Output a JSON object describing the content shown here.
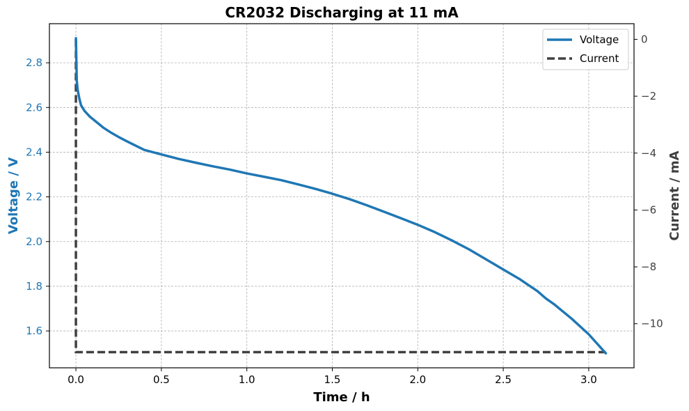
{
  "chart_data": {
    "type": "line",
    "title": "CR2032 Discharging at 11 mA",
    "xlabel": "Time  /  h",
    "ylabel_left": "Voltage  /  V",
    "ylabel_right": "Current  /  mA",
    "xlim": [
      -0.155,
      3.265
    ],
    "ylim_left": [
      1.435,
      2.975
    ],
    "ylim_right": [
      -11.55,
      0.55
    ],
    "x_ticks": [
      0.0,
      0.5,
      1.0,
      1.5,
      2.0,
      2.5,
      3.0
    ],
    "y_left_ticks": [
      1.6,
      1.8,
      2.0,
      2.2,
      2.4,
      2.6,
      2.8
    ],
    "y_right_ticks": [
      0,
      -2,
      -4,
      -6,
      -8,
      -10
    ],
    "grid": true,
    "legend_position": "top-right",
    "colors": {
      "voltage": "#1f77b4",
      "current": "#404040",
      "left_axis": "#1f77b4",
      "right_axis": "#404040"
    },
    "series": [
      {
        "name": "Voltage",
        "axis": "left",
        "style": "solid",
        "x": [
          0.0,
          0.005,
          0.01,
          0.02,
          0.03,
          0.05,
          0.08,
          0.12,
          0.16,
          0.2,
          0.25,
          0.3,
          0.4,
          0.5,
          0.6,
          0.7,
          0.8,
          0.9,
          1.0,
          1.1,
          1.2,
          1.3,
          1.4,
          1.5,
          1.6,
          1.7,
          1.8,
          1.9,
          2.0,
          2.1,
          2.2,
          2.3,
          2.4,
          2.5,
          2.6,
          2.7,
          2.75,
          2.8,
          2.9,
          3.0,
          3.1
        ],
        "y": [
          2.91,
          2.72,
          2.68,
          2.64,
          2.61,
          2.585,
          2.56,
          2.535,
          2.51,
          2.49,
          2.468,
          2.448,
          2.41,
          2.39,
          2.37,
          2.353,
          2.337,
          2.322,
          2.305,
          2.29,
          2.275,
          2.256,
          2.236,
          2.214,
          2.19,
          2.163,
          2.134,
          2.105,
          2.075,
          2.042,
          2.005,
          1.965,
          1.92,
          1.875,
          1.83,
          1.778,
          1.745,
          1.718,
          1.655,
          1.585,
          1.5
        ]
      },
      {
        "name": "Current",
        "axis": "right",
        "style": "dashed",
        "x": [
          0.0,
          0.0,
          0.0,
          3.1
        ],
        "y": [
          0,
          -11.0,
          -11.0,
          -11.0
        ]
      }
    ]
  }
}
